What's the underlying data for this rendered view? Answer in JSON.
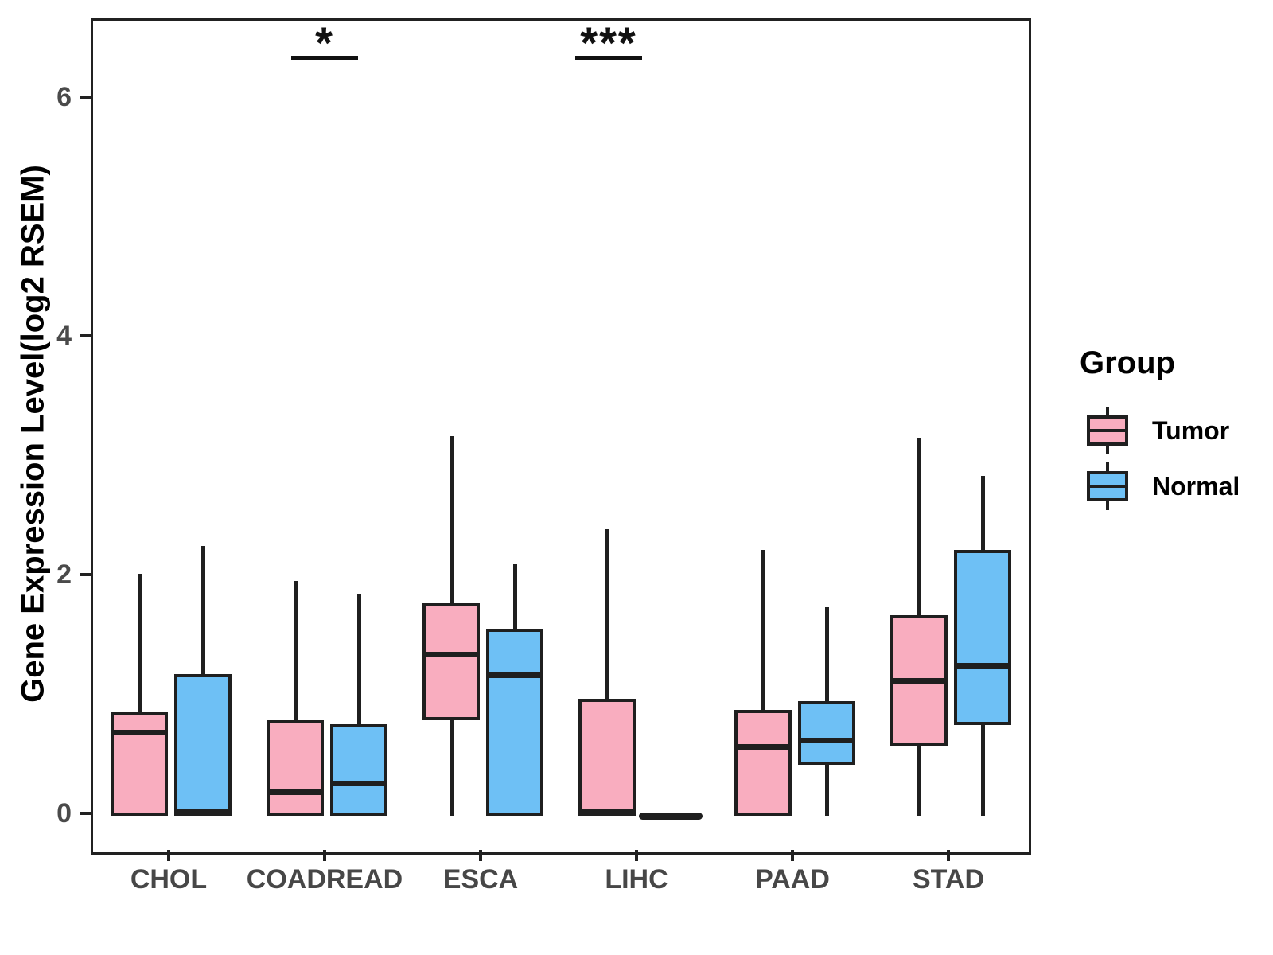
{
  "chart_data": {
    "type": "boxplot",
    "title": "",
    "xlabel": "",
    "ylabel": "Gene Expression Level(log2 RSEM)",
    "categories": [
      "CHOL",
      "COADREAD",
      "ESCA",
      "LIHC",
      "PAAD",
      "STAD"
    ],
    "yticks": [
      0,
      2,
      4,
      6
    ],
    "ylim": [
      -0.3,
      6.65
    ],
    "grid": "off",
    "legend_position": "right",
    "legend": {
      "title": "Group",
      "entries": [
        {
          "label": "Tumor",
          "color": "#F9ADBF"
        },
        {
          "label": "Normal",
          "color": "#6EC0F5"
        }
      ]
    },
    "series": [
      {
        "name": "Tumor",
        "color": "#F9ADBF",
        "boxes": [
          {
            "category": "CHOL",
            "whisker_low": 0,
            "q1": 0,
            "median": 0.7,
            "q3": 0.87,
            "whisker_high": 2.03
          },
          {
            "category": "COADREAD",
            "whisker_low": 0,
            "q1": 0,
            "median": 0.2,
            "q3": 0.8,
            "whisker_high": 1.97
          },
          {
            "category": "ESCA",
            "whisker_low": 0,
            "q1": 0.8,
            "median": 1.35,
            "q3": 1.78,
            "whisker_high": 3.18
          },
          {
            "category": "LIHC",
            "whisker_low": 0,
            "q1": 0,
            "median": 0.0,
            "q3": 0.98,
            "whisker_high": 2.4
          },
          {
            "category": "PAAD",
            "whisker_low": 0,
            "q1": 0,
            "median": 0.58,
            "q3": 0.89,
            "whisker_high": 2.23
          },
          {
            "category": "STAD",
            "whisker_low": 0,
            "q1": 0.58,
            "median": 1.13,
            "q3": 1.68,
            "whisker_high": 3.17
          }
        ]
      },
      {
        "name": "Normal",
        "color": "#6EC0F5",
        "boxes": [
          {
            "category": "CHOL",
            "whisker_low": 0,
            "q1": 0,
            "median": 0.0,
            "q3": 1.19,
            "whisker_high": 2.26
          },
          {
            "category": "COADREAD",
            "whisker_low": 0,
            "q1": 0,
            "median": 0.27,
            "q3": 0.77,
            "whisker_high": 1.86
          },
          {
            "category": "ESCA",
            "whisker_low": 0,
            "q1": 0,
            "median": 1.18,
            "q3": 1.57,
            "whisker_high": 2.11
          },
          {
            "category": "LIHC",
            "whisker_low": 0,
            "q1": 0,
            "median": 0.0,
            "q3": 0.0,
            "whisker_high": 0
          },
          {
            "category": "PAAD",
            "whisker_low": 0,
            "q1": 0.43,
            "median": 0.63,
            "q3": 0.96,
            "whisker_high": 1.75
          },
          {
            "category": "STAD",
            "whisker_low": 0,
            "q1": 0.76,
            "median": 1.26,
            "q3": 2.23,
            "whisker_high": 2.85
          }
        ]
      }
    ],
    "annotations": [
      {
        "category": "COADREAD",
        "label": "*"
      },
      {
        "category": "LIHC",
        "label": "***"
      }
    ],
    "colors": {
      "box_border": "#1f1f1f",
      "panel_border": "#212121",
      "axis_tick_text": "#4a4a4a",
      "axis_title_text": "#000000",
      "annotation": "#111111"
    }
  }
}
